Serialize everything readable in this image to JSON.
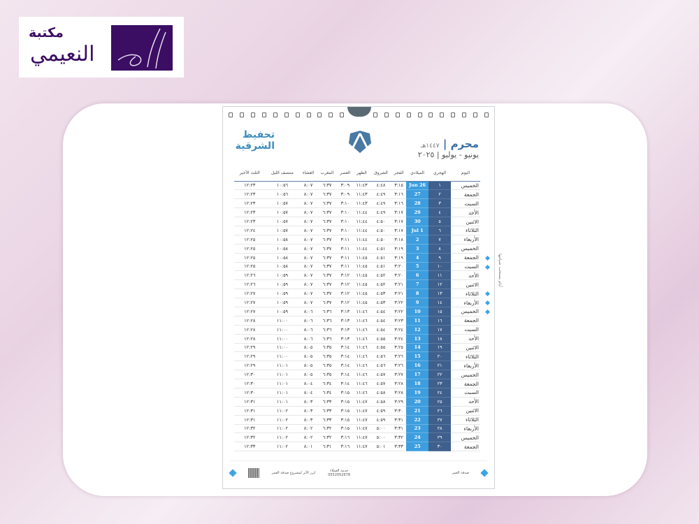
{
  "logo": {
    "line1": "مكتبة",
    "line2": "النعيمي",
    "brand_color": "#3b0d63"
  },
  "calendar": {
    "month": "محرم",
    "hijri_year": "١٤٤٧هـ",
    "greg_months": "يونيو - يوليو",
    "greg_year": "٢٠٢٥",
    "brand_line1": "تحفيظ",
    "brand_line2": "الشرقية",
    "side_note": "أيام يستحب صيامها",
    "colors": {
      "hijri": "#3f5f8c",
      "gregorian": "#3c9ede",
      "accent": "#3fa4e3"
    },
    "headers": [
      "اليوم",
      "الهجري",
      "الميلادي",
      "الفجر",
      "الشروق",
      "الظهر",
      "العصر",
      "المغرب",
      "العشاء",
      "منتصف الليل",
      "الثلث الأخير"
    ],
    "rows": [
      [
        "الخميس",
        "١",
        "Jun 26",
        "٣:١٥",
        "٤:٤٨",
        "١١:٤٣",
        "٣:٠٩",
        "٦:٣٧",
        "٨:٠٧",
        "١٠:٥٦",
        "١٢:٢٣",
        false
      ],
      [
        "الجمعة",
        "٢",
        "27",
        "٣:١٦",
        "٤:٤٩",
        "١١:٤٣",
        "٣:٠٩",
        "٦:٣٧",
        "٨:٠٧",
        "١٠:٥٦",
        "١٢:٢٣",
        false
      ],
      [
        "السبت",
        "٣",
        "28",
        "٣:١٦",
        "٤:٤٩",
        "١١:٤٣",
        "٣:١٠",
        "٦:٣٧",
        "٨:٠٧",
        "١٠:٥٧",
        "١٢:٢٣",
        false
      ],
      [
        "الأحد",
        "٤",
        "29",
        "٣:١٧",
        "٤:٤٩",
        "١١:٤٤",
        "٣:١٠",
        "٦:٣٧",
        "٨:٠٧",
        "١٠:٥٧",
        "١٢:٢٣",
        false
      ],
      [
        "الاثنين",
        "٥",
        "30",
        "٣:١٧",
        "٤:٥٠",
        "١١:٤٤",
        "٣:١٠",
        "٦:٣٧",
        "٨:٠٧",
        "١٠:٥٧",
        "١٢:٢٣",
        false
      ],
      [
        "الثلاثاء",
        "٦",
        "Jul 1",
        "٣:١٧",
        "٤:٥٠",
        "١١:٤٤",
        "٣:١٠",
        "٦:٣٧",
        "٨:٠٧",
        "١٠:٥٧",
        "١٢:٢٤",
        false
      ],
      [
        "الأربعاء",
        "٧",
        "2",
        "٣:١٨",
        "٤:٥٠",
        "١١:٤٤",
        "٣:١١",
        "٦:٣٧",
        "٨:٠٧",
        "١٠:٥٨",
        "١٢:٢٥",
        false
      ],
      [
        "الخميس",
        "٨",
        "3",
        "٣:١٩",
        "٤:٥١",
        "١١:٤٤",
        "٣:١١",
        "٦:٣٧",
        "٨:٠٧",
        "١٠:٥٨",
        "١٢:٢٥",
        false
      ],
      [
        "الجمعة",
        "٩",
        "4",
        "٣:١٩",
        "٤:٥١",
        "١١:٤٥",
        "٣:١١",
        "٦:٣٧",
        "٨:٠٧",
        "١٠:٥٨",
        "١٢:٢٥",
        true
      ],
      [
        "السبت",
        "١٠",
        "5",
        "٣:٢٠",
        "٤:٥١",
        "١١:٤٥",
        "٣:١١",
        "٦:٣٧",
        "٨:٠٧",
        "١٠:٥٨",
        "١٢:٢٥",
        true
      ],
      [
        "الأحد",
        "١١",
        "6",
        "٣:٢٠",
        "٤:٥٢",
        "١١:٤٥",
        "٣:١٢",
        "٦:٣٧",
        "٨:٠٧",
        "١٠:٥٩",
        "١٢:٢٦",
        false
      ],
      [
        "الاثنين",
        "١٢",
        "7",
        "٣:٢١",
        "٤:٥٢",
        "١١:٤٥",
        "٣:١٢",
        "٦:٣٧",
        "٨:٠٧",
        "١٠:٥٩",
        "١٢:٢٦",
        false
      ],
      [
        "الثلاثاء",
        "١٣",
        "8",
        "٣:٢١",
        "٤:٥٣",
        "١١:٤٥",
        "٣:١٢",
        "٦:٣٧",
        "٨:٠٧",
        "١٠:٥٩",
        "١٢:٢٧",
        true
      ],
      [
        "الأربعاء",
        "١٤",
        "9",
        "٣:٢٢",
        "٤:٥٣",
        "١١:٤٥",
        "٣:١٢",
        "٦:٣٧",
        "٨:٠٧",
        "١٠:٥٩",
        "١٢:٢٧",
        true
      ],
      [
        "الخميس",
        "١٥",
        "10",
        "٣:٢٢",
        "٤:٥٤",
        "١١:٤٦",
        "٣:١٣",
        "٦:٣٦",
        "٨:٠٦",
        "١٠:٥٩",
        "١٢:٢٧",
        true
      ],
      [
        "الجمعة",
        "١٦",
        "11",
        "٣:٢٣",
        "٤:٥٤",
        "١١:٤٦",
        "٣:١٣",
        "٦:٣٦",
        "٨:٠٦",
        "١١:٠٠",
        "١٢:٢٨",
        false
      ],
      [
        "السبت",
        "١٧",
        "12",
        "٣:٢٤",
        "٤:٥٤",
        "١١:٤٦",
        "٣:١٣",
        "٦:٣٦",
        "٨:٠٦",
        "١١:٠٠",
        "١٢:٢٨",
        false
      ],
      [
        "الأحد",
        "١٨",
        "13",
        "٣:٢٤",
        "٤:٥٥",
        "١١:٤٦",
        "٣:١٣",
        "٦:٣٦",
        "٨:٠٦",
        "١١:٠٠",
        "١٢:٢٨",
        false
      ],
      [
        "الاثنين",
        "١٩",
        "14",
        "٣:٢٥",
        "٤:٥٥",
        "١١:٤٦",
        "٣:١٤",
        "٦:٣٥",
        "٨:٠٥",
        "١١:٠٠",
        "١٢:٢٩",
        false
      ],
      [
        "الثلاثاء",
        "٢٠",
        "15",
        "٣:٢٦",
        "٤:٥٦",
        "١١:٤٦",
        "٣:١٤",
        "٦:٣٥",
        "٨:٠٥",
        "١١:٠٠",
        "١٢:٢٩",
        false
      ],
      [
        "الأربعاء",
        "٢١",
        "16",
        "٣:٢٦",
        "٤:٥٦",
        "١١:٤٦",
        "٣:١٤",
        "٦:٣٥",
        "٨:٠٥",
        "١١:٠١",
        "١٢:٢٩",
        false
      ],
      [
        "الخميس",
        "٢٢",
        "17",
        "٣:٢٧",
        "٤:٥٧",
        "١١:٤٦",
        "٣:١٤",
        "٦:٣٥",
        "٨:٠٥",
        "١١:٠١",
        "١٢:٣٠",
        false
      ],
      [
        "الجمعة",
        "٢٣",
        "18",
        "٣:٢٨",
        "٤:٥٧",
        "١١:٤٦",
        "٣:١٤",
        "٦:٣٤",
        "٨:٠٤",
        "١١:٠١",
        "١٢:٣٠",
        false
      ],
      [
        "السبت",
        "٢٤",
        "19",
        "٣:٢٨",
        "٤:٥٨",
        "١١:٤٦",
        "٣:١٥",
        "٦:٣٤",
        "٨:٠٤",
        "١١:٠١",
        "١٢:٣٠",
        false
      ],
      [
        "الأحد",
        "٢٥",
        "20",
        "٣:٢٩",
        "٤:٥٨",
        "١١:٤٧",
        "٣:١٥",
        "٦:٣٣",
        "٨:٠٣",
        "١١:٠١",
        "١٢:٣١",
        false
      ],
      [
        "الاثنين",
        "٢٦",
        "21",
        "٣:٣٠",
        "٤:٥٩",
        "١١:٤٧",
        "٣:١٥",
        "٦:٣٣",
        "٨:٠٣",
        "١١:٠٢",
        "١٢:٣١",
        false
      ],
      [
        "الثلاثاء",
        "٢٧",
        "22",
        "٣:٣١",
        "٤:٥٩",
        "١١:٤٧",
        "٣:١٥",
        "٦:٣٣",
        "٨:٠٣",
        "١١:٠٢",
        "١٢:٣١",
        false
      ],
      [
        "الأربعاء",
        "٢٨",
        "23",
        "٣:٣١",
        "٥:٠٠",
        "١١:٤٧",
        "٣:١٥",
        "٦:٣٢",
        "٨:٠٢",
        "١١:٠٢",
        "١٢:٣٢",
        false
      ],
      [
        "الخميس",
        "٢٩",
        "24",
        "٣:٣٢",
        "٥:٠٠",
        "١١:٤٧",
        "٣:١٦",
        "٦:٣٢",
        "٨:٠٢",
        "١١:٠٢",
        "١٢:٣٢",
        false
      ],
      [
        "الجمعة",
        "٣٠",
        "25",
        "٣:٣٣",
        "٥:٠١",
        "١١:٤٧",
        "٣:١٦",
        "٦:٣١",
        "٨:٠١",
        "١١:٠٢",
        "١٢:٣٣",
        false
      ]
    ],
    "footer": {
      "sadaqa": "صدقة العمر",
      "service_label": "خدمة العملاء",
      "phone": "0552052678",
      "project": "ابرز الأثر لمشروع صدقة العمر"
    }
  }
}
